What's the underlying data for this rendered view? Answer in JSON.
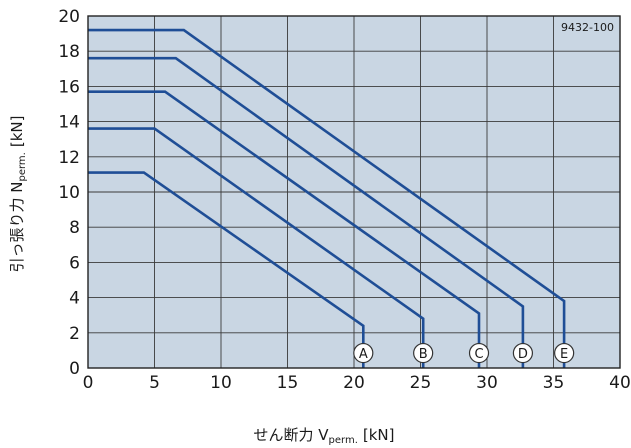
{
  "chart_data": {
    "type": "line",
    "figure_code": "9432-100",
    "xlabel_main": "せん断力 V",
    "xlabel_sub": "perm.",
    "xlabel_unit": "[kN]",
    "ylabel_main": "引っ張り力 N",
    "ylabel_sub": "perm.",
    "ylabel_unit": "[kN]",
    "xlim": [
      0,
      40
    ],
    "ylim": [
      0,
      20
    ],
    "xticks": [
      0,
      5,
      10,
      15,
      20,
      25,
      30,
      35,
      40
    ],
    "yticks": [
      0,
      2,
      4,
      6,
      8,
      10,
      12,
      14,
      16,
      18,
      20
    ],
    "grid": true,
    "colors": {
      "plot_bg": "#c9d6e3",
      "line": "#1f4e96",
      "grid": "#3a3a3a"
    },
    "series": [
      {
        "name": "A",
        "points": [
          [
            0,
            11.1
          ],
          [
            4.2,
            11.1
          ],
          [
            20.7,
            2.4
          ],
          [
            20.7,
            0
          ]
        ]
      },
      {
        "name": "B",
        "points": [
          [
            0,
            13.6
          ],
          [
            5.0,
            13.6
          ],
          [
            25.2,
            2.8
          ],
          [
            25.2,
            0
          ]
        ]
      },
      {
        "name": "C",
        "points": [
          [
            0,
            15.7
          ],
          [
            5.8,
            15.7
          ],
          [
            29.4,
            3.1
          ],
          [
            29.4,
            0
          ]
        ]
      },
      {
        "name": "D",
        "points": [
          [
            0,
            17.6
          ],
          [
            6.6,
            17.6
          ],
          [
            32.7,
            3.5
          ],
          [
            32.7,
            0
          ]
        ]
      },
      {
        "name": "E",
        "points": [
          [
            0,
            19.2
          ],
          [
            7.2,
            19.2
          ],
          [
            35.8,
            3.8
          ],
          [
            35.8,
            0
          ]
        ]
      }
    ]
  }
}
